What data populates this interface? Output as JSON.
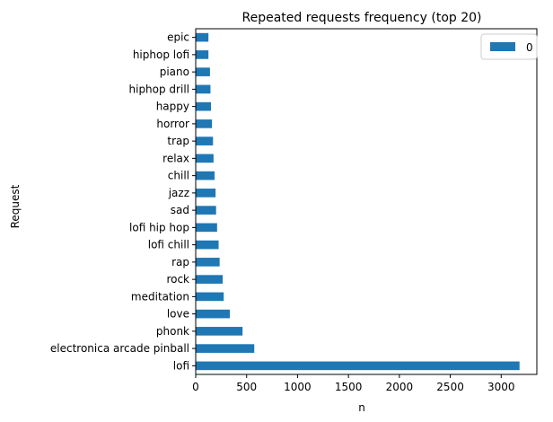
{
  "chart_data": {
    "type": "bar",
    "orientation": "horizontal",
    "title": "Repeated requests frequency (top 20)",
    "xlabel": "n",
    "ylabel": "Request",
    "xlim": [
      0,
      3350
    ],
    "xticks": [
      0,
      500,
      1000,
      1500,
      2000,
      2500,
      3000
    ],
    "grid": false,
    "legend_placement": "top-right",
    "categories": [
      "lofi",
      "electronica arcade pinball",
      "phonk",
      "love",
      "meditation",
      "rock",
      "rap",
      "lofi chill",
      "lofi hip hop",
      "sad",
      "jazz",
      "chill",
      "relax",
      "trap",
      "horror",
      "happy",
      "hiphop drill",
      "piano",
      "hiphop lofi",
      "epic"
    ],
    "series": [
      {
        "name": "0",
        "color": "#1f77b4",
        "values": [
          3180,
          575,
          460,
          335,
          275,
          265,
          235,
          225,
          210,
          200,
          195,
          185,
          175,
          170,
          160,
          150,
          145,
          140,
          125,
          125
        ]
      }
    ]
  }
}
